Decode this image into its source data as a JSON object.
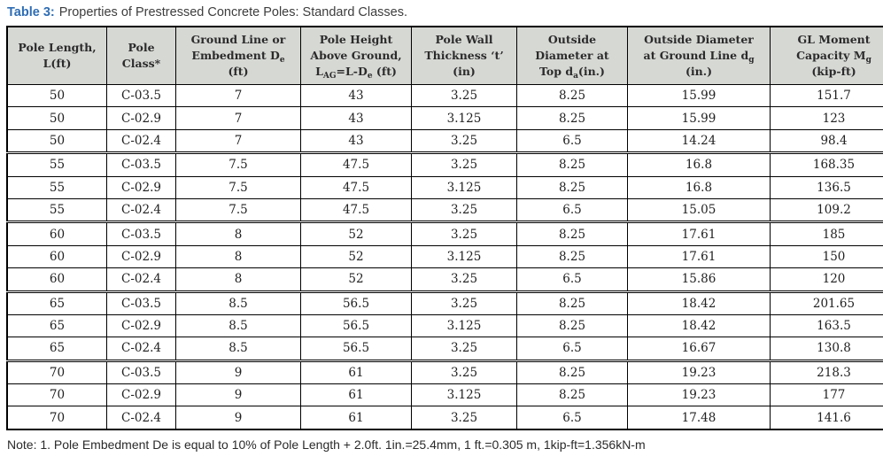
{
  "title": {
    "label": "Table 3:",
    "text": "Properties of Prestressed Concrete Poles: Standard Classes."
  },
  "colors": {
    "title_accent": "#2e6db4",
    "header_bg": "#d6d8d4",
    "border": "#000000"
  },
  "table": {
    "columns": [
      {
        "name": "pole-length",
        "lines": [
          [
            {
              "t": "Pole Length,"
            }
          ],
          [
            {
              "t": "L(ft)"
            }
          ]
        ]
      },
      {
        "name": "pole-class",
        "lines": [
          [
            {
              "t": "Pole"
            }
          ],
          [
            {
              "t": "Class*"
            }
          ]
        ]
      },
      {
        "name": "embedment-depth",
        "lines": [
          [
            {
              "t": "Ground Line or"
            }
          ],
          [
            {
              "t": "Embedment D"
            },
            {
              "t": "e",
              "sub": true
            }
          ],
          [
            {
              "t": "(ft)"
            }
          ]
        ]
      },
      {
        "name": "height-above-ground",
        "lines": [
          [
            {
              "t": "Pole Height"
            }
          ],
          [
            {
              "t": "Above Ground,"
            }
          ],
          [
            {
              "t": "L"
            },
            {
              "t": "AG",
              "sub": true
            },
            {
              "t": "=L-D"
            },
            {
              "t": "e",
              "sub": true
            },
            {
              "t": " (ft)"
            }
          ]
        ]
      },
      {
        "name": "wall-thickness",
        "lines": [
          [
            {
              "t": "Pole Wall"
            }
          ],
          [
            {
              "t": "Thickness ‘t’"
            }
          ],
          [
            {
              "t": "(in)"
            }
          ]
        ]
      },
      {
        "name": "diameter-at-top",
        "lines": [
          [
            {
              "t": "Outside"
            }
          ],
          [
            {
              "t": "Diameter at"
            }
          ],
          [
            {
              "t": "Top d"
            },
            {
              "t": "a",
              "sub": true
            },
            {
              "t": "(in.)"
            }
          ]
        ]
      },
      {
        "name": "diameter-at-ground-line",
        "lines": [
          [
            {
              "t": "Outside Diameter"
            }
          ],
          [
            {
              "t": "at Ground Line d"
            },
            {
              "t": "g",
              "sub": true
            }
          ],
          [
            {
              "t": "(in.)"
            }
          ]
        ]
      },
      {
        "name": "moment-capacity",
        "lines": [
          [
            {
              "t": "GL Moment"
            }
          ],
          [
            {
              "t": "Capacity M"
            },
            {
              "t": "g",
              "sub": true
            }
          ],
          [
            {
              "t": "(kip-ft)"
            }
          ]
        ]
      }
    ],
    "rows": [
      [
        "50",
        "C-03.5",
        "7",
        "43",
        "3.25",
        "8.25",
        "15.99",
        "151.7"
      ],
      [
        "50",
        "C-02.9",
        "7",
        "43",
        "3.125",
        "8.25",
        "15.99",
        "123"
      ],
      [
        "50",
        "C-02.4",
        "7",
        "43",
        "3.25",
        "6.5",
        "14.24",
        "98.4"
      ],
      [
        "55",
        "C-03.5",
        "7.5",
        "47.5",
        "3.25",
        "8.25",
        "16.8",
        "168.35"
      ],
      [
        "55",
        "C-02.9",
        "7.5",
        "47.5",
        "3.125",
        "8.25",
        "16.8",
        "136.5"
      ],
      [
        "55",
        "C-02.4",
        "7.5",
        "47.5",
        "3.25",
        "6.5",
        "15.05",
        "109.2"
      ],
      [
        "60",
        "C-03.5",
        "8",
        "52",
        "3.25",
        "8.25",
        "17.61",
        "185"
      ],
      [
        "60",
        "C-02.9",
        "8",
        "52",
        "3.125",
        "8.25",
        "17.61",
        "150"
      ],
      [
        "60",
        "C-02.4",
        "8",
        "52",
        "3.25",
        "6.5",
        "15.86",
        "120"
      ],
      [
        "65",
        "C-03.5",
        "8.5",
        "56.5",
        "3.25",
        "8.25",
        "18.42",
        "201.65"
      ],
      [
        "65",
        "C-02.9",
        "8.5",
        "56.5",
        "3.125",
        "8.25",
        "18.42",
        "163.5"
      ],
      [
        "65",
        "C-02.4",
        "8.5",
        "56.5",
        "3.25",
        "6.5",
        "16.67",
        "130.8"
      ],
      [
        "70",
        "C-03.5",
        "9",
        "61",
        "3.25",
        "8.25",
        "19.23",
        "218.3"
      ],
      [
        "70",
        "C-02.9",
        "9",
        "61",
        "3.125",
        "8.25",
        "19.23",
        "177"
      ],
      [
        "70",
        "C-02.4",
        "9",
        "61",
        "3.25",
        "6.5",
        "17.48",
        "141.6"
      ]
    ]
  },
  "note": "Note: 1. Pole Embedment De is equal to 10% of Pole Length + 2.0ft. 1in.=25.4mm, 1 ft.=0.305 m, 1kip-ft=1.356kN-m"
}
